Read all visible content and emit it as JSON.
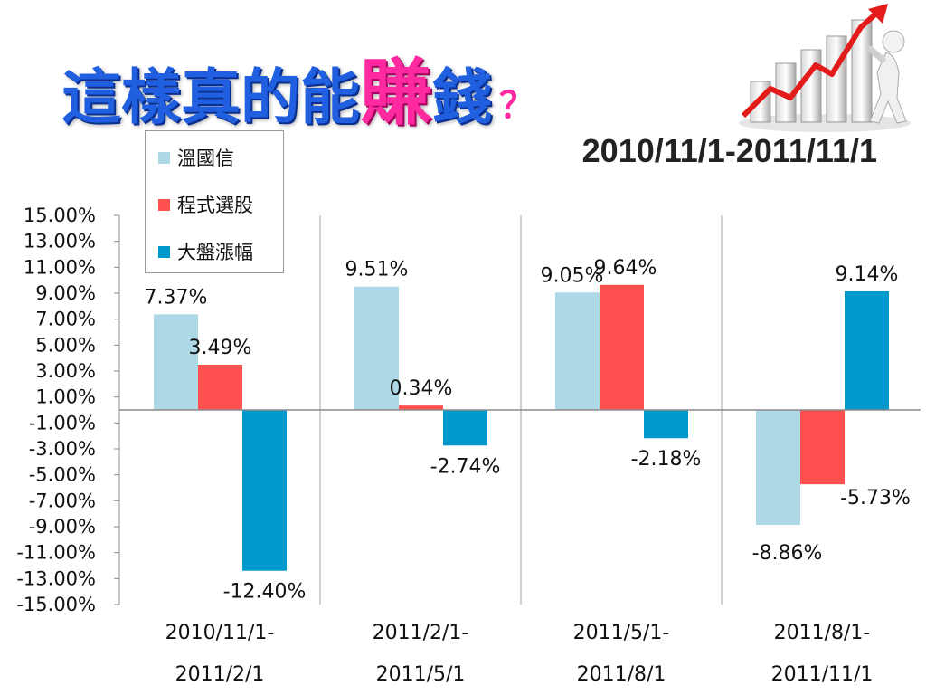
{
  "slide": {
    "title_main": "這樣真的能",
    "title_highlight": "賺",
    "title_end": "錢",
    "title_question": "？",
    "subtitle": "2010/11/1-2011/11/1"
  },
  "colors": {
    "series1": "#add8e6",
    "series2": "#ff5050",
    "series3": "#0099cc",
    "title_blue": "#1f5fe0",
    "title_pink": "#ff2aa0",
    "arrow_red": "#e31b1b"
  },
  "icons": [
    "rising-chart-figure-icon"
  ],
  "chart_data": {
    "type": "bar",
    "categories": [
      [
        "2010/11/1-",
        "2011/2/1"
      ],
      [
        "2011/2/1-",
        "2011/5/1"
      ],
      [
        "2011/5/1-",
        "2011/8/1"
      ],
      [
        "2011/8/1-",
        "2011/11/1"
      ]
    ],
    "series": [
      {
        "name": "溫國信",
        "values": [
          7.37,
          9.51,
          9.05,
          -8.86
        ],
        "labels": [
          "7.37%",
          "9.51%",
          "9.05%",
          "-8.86%"
        ]
      },
      {
        "name": "程式選股",
        "values": [
          3.49,
          0.34,
          9.64,
          -5.73
        ],
        "labels": [
          "3.49%",
          "0.34%",
          "9.64%",
          "-5.73%"
        ]
      },
      {
        "name": "大盤漲幅",
        "values": [
          -12.4,
          -2.74,
          -2.18,
          9.14
        ],
        "labels": [
          "-12.40%",
          "-2.74%",
          "-2.18%",
          "9.14%"
        ]
      }
    ],
    "y_ticks": [
      "15.00%",
      "13.00%",
      "11.00%",
      "9.00%",
      "7.00%",
      "5.00%",
      "3.00%",
      "1.00%",
      "-1.00%",
      "-3.00%",
      "-5.00%",
      "-7.00%",
      "-9.00%",
      "-11.00%",
      "-13.00%",
      "-15.00%"
    ],
    "ylim": [
      -15,
      15
    ],
    "legend_position": "top-left",
    "grid": "vertical category separators"
  }
}
